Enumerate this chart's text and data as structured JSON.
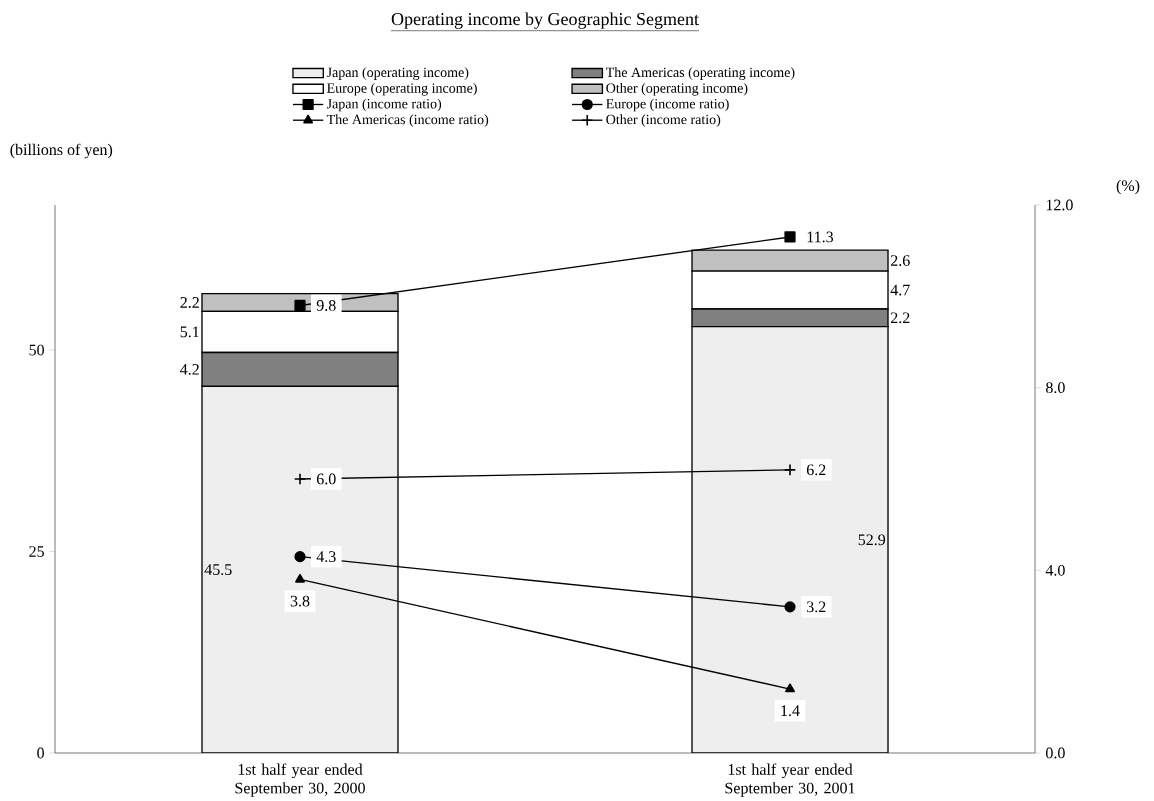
{
  "chart_data": {
    "type": "bar",
    "title": "Operating income by Geographic Segment",
    "ylabel": "(billions of yen)",
    "y2label": "(%)",
    "categories": [
      "1st half year ended September 30, 2000",
      "1st half year ended September 30, 2001"
    ],
    "stacked": true,
    "legend": "top",
    "grid": false,
    "ylim": [
      0,
      68
    ],
    "yticks": [
      0,
      25,
      50
    ],
    "y2lim": [
      0,
      12
    ],
    "y2ticks": [
      {
        "value": 0,
        "label": "0.0"
      },
      {
        "value": 4,
        "label": "4.0"
      },
      {
        "value": 8,
        "label": "8.0"
      },
      {
        "value": 12,
        "label": "12.0"
      }
    ],
    "series": [
      {
        "name": "Japan (operating income)",
        "color": "#eeeeee",
        "values": [
          45.5,
          52.9
        ],
        "value_labels": [
          "45.5",
          "52.9"
        ]
      },
      {
        "name": "The Americas (operating income)",
        "color": "#808080",
        "values": [
          4.2,
          2.2
        ],
        "value_labels": [
          "4.2",
          "2.2"
        ]
      },
      {
        "name": "Europe (operating income)",
        "color": "#ffffff",
        "values": [
          5.1,
          4.7
        ],
        "value_labels": [
          "5.1",
          "4.7"
        ]
      },
      {
        "name": "Other (operating income)",
        "color": "#c0c0c0",
        "values": [
          2.2,
          2.6
        ],
        "value_labels": [
          "2.2",
          "2.6"
        ]
      },
      {
        "name": "Japan (income ratio)",
        "type": "line",
        "axis": "y2",
        "marker": "square",
        "color": "#000000",
        "values": [
          9.8,
          11.3
        ],
        "value_labels": [
          "9.8",
          "11.3"
        ]
      },
      {
        "name": "Europe (income ratio)",
        "type": "line",
        "axis": "y2",
        "marker": "circle",
        "color": "#000000",
        "values": [
          4.3,
          3.2
        ],
        "value_labels": [
          "4.3",
          "3.2"
        ]
      },
      {
        "name": "The Americas (income ratio)",
        "type": "line",
        "axis": "y2",
        "marker": "triangle",
        "color": "#000000",
        "values": [
          3.8,
          1.4
        ],
        "value_labels": [
          "3.8",
          "1.4"
        ]
      },
      {
        "name": "Other (income ratio)",
        "type": "line",
        "axis": "y2",
        "marker": "cross",
        "color": "#000000",
        "values": [
          6.0,
          6.2
        ],
        "value_labels": [
          "6.0",
          "6.2"
        ]
      }
    ]
  }
}
